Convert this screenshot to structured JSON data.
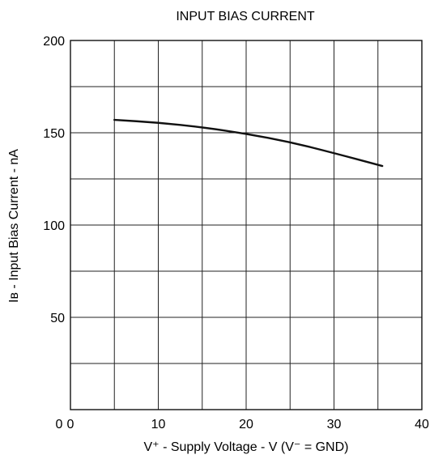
{
  "chart_data": {
    "type": "line",
    "title": "INPUT BIAS CURRENT",
    "xlabel": "V⁺ - Supply Voltage - V (V⁻ = GND)",
    "ylabel": "Iʙ - Input Bias Current - nA",
    "xlim": [
      0,
      40
    ],
    "ylim": [
      0,
      200
    ],
    "x_major_ticks": [
      0,
      10,
      20,
      30,
      40
    ],
    "x_tick_labels": [
      "0",
      "10",
      "20",
      "30",
      "40"
    ],
    "x_grid": [
      0,
      5,
      10,
      15,
      20,
      25,
      30,
      35,
      40
    ],
    "y_major_ticks": [
      0,
      50,
      100,
      150,
      200
    ],
    "y_tick_labels": [
      "0",
      "50",
      "100",
      "150",
      "200"
    ],
    "y_grid": [
      0,
      25,
      50,
      75,
      100,
      125,
      150,
      175,
      200
    ],
    "grid": true,
    "series": [
      {
        "color": "#111111",
        "x": [
          5,
          10,
          15,
          20,
          25,
          30,
          35.5
        ],
        "y": [
          157,
          155.5,
          153,
          149.5,
          145,
          139,
          132
        ]
      }
    ]
  }
}
